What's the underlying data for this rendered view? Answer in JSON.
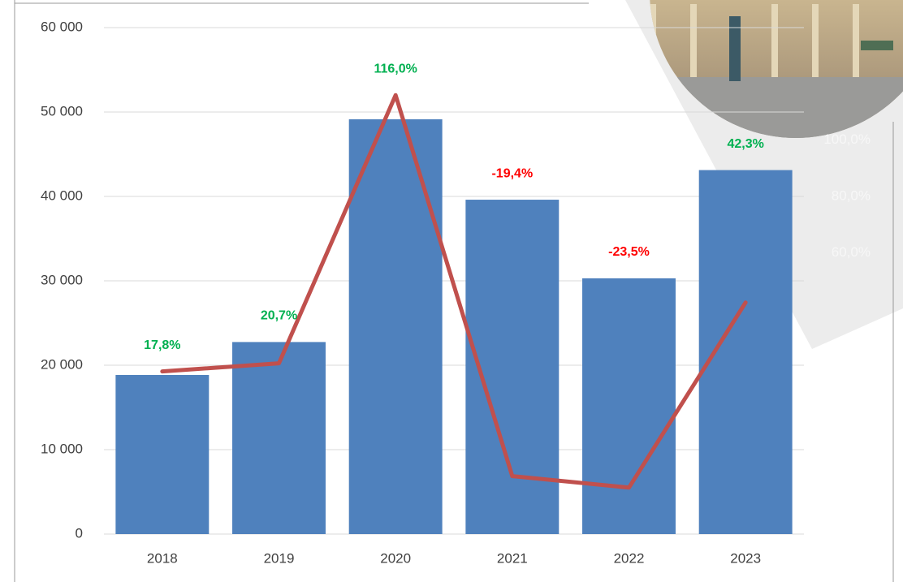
{
  "chart_data": {
    "type": "bar-line",
    "categories": [
      "2018",
      "2019",
      "2020",
      "2021",
      "2022",
      "2023"
    ],
    "series": [
      {
        "type": "bar",
        "color": "#4f81bd",
        "values": [
          18850,
          22750,
          49140,
          39610,
          30300,
          43120
        ]
      },
      {
        "type": "line",
        "axis": "y2",
        "color": "#c0504d",
        "values": [
          17.8,
          20.7,
          116.0,
          -19.4,
          -23.5,
          42.3
        ],
        "value_labels": [
          "17,8%",
          "20,7%",
          "116,0%",
          "-19,4%",
          "-23,5%",
          "42,3%"
        ]
      }
    ],
    "ylim": [
      0,
      60000
    ],
    "yticks": [
      0,
      {
        "value": 10000,
        "label": "10 000"
      },
      {
        "value": 20000,
        "label": "20 000"
      },
      {
        "value": 30000,
        "label": "30 000"
      },
      {
        "value": 40000,
        "label": "40 000"
      },
      {
        "value": 50000,
        "label": "50 000"
      },
      {
        "value": 60000,
        "label": "60 000"
      }
    ],
    "y2lim": [
      -40,
      140
    ],
    "y2ticks": [
      {
        "value": 100,
        "label": "100,0%"
      },
      {
        "value": 80,
        "label": "80,0%"
      },
      {
        "value": 60,
        "label": "60,0%"
      }
    ],
    "grid": true
  }
}
